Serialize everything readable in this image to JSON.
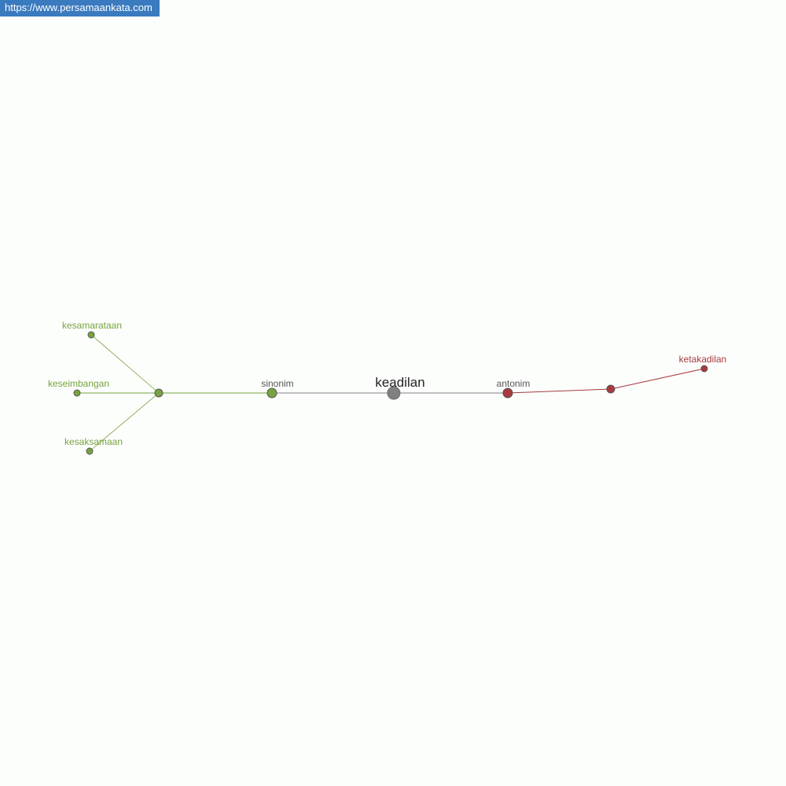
{
  "watermark": "https://www.persamaankata.com",
  "colors": {
    "synonym": "#76a33f",
    "antonym": "#a83a3f",
    "center": "#808080",
    "link": "#808080"
  },
  "graph": {
    "center": "keadilan",
    "synonym_hub": "sinonim",
    "antonym_hub": "antonim",
    "synonyms": [
      "kesamarataan",
      "keseimbangan",
      "kesaksamaan"
    ],
    "antonyms": [
      "ketakadilan"
    ]
  }
}
